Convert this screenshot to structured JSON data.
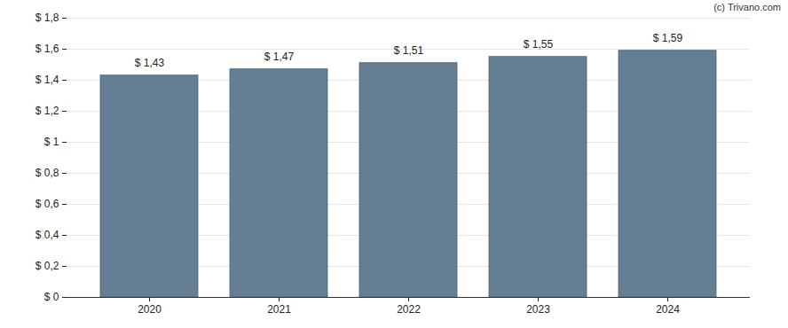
{
  "chart_data": {
    "type": "bar",
    "caption": "(c) Trivano.com",
    "categories": [
      "2020",
      "2021",
      "2022",
      "2023",
      "2024"
    ],
    "values": [
      1.43,
      1.47,
      1.51,
      1.55,
      1.59
    ],
    "value_labels": [
      "$ 1,43",
      "$ 1,47",
      "$ 1,51",
      "$ 1,55",
      "$ 1,59"
    ],
    "data_labels": true,
    "color": "#647f93",
    "ylim": [
      0,
      1.8
    ],
    "yticks": [
      {
        "value": 0,
        "label": "$ 0"
      },
      {
        "value": 0.2,
        "label": "$ 0,2"
      },
      {
        "value": 0.4,
        "label": "$ 0,4"
      },
      {
        "value": 0.6,
        "label": "$ 0,6"
      },
      {
        "value": 0.8,
        "label": "$ 0,8"
      },
      {
        "value": 1,
        "label": "$ 1"
      },
      {
        "value": 1.2,
        "label": "$ 1,2"
      },
      {
        "value": 1.4,
        "label": "$ 1,4"
      },
      {
        "value": 1.6,
        "label": "$ 1,6"
      },
      {
        "value": 1.8,
        "label": "$ 1,8"
      }
    ],
    "grid": true
  }
}
